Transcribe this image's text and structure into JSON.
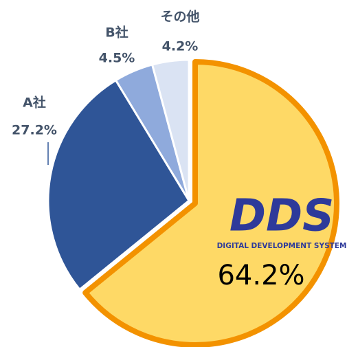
{
  "chart_data": {
    "type": "pie",
    "categories": [
      null,
      "A社",
      "B社",
      "その他"
    ],
    "values": [
      64.2,
      27.2,
      4.5,
      4.2
    ],
    "value_labels": [
      "64.2%",
      "27.2%",
      "4.5%",
      "4.2%"
    ],
    "colors": [
      "#fed966",
      "#2f5597",
      "#8faadc",
      "#dae3f3"
    ],
    "highlight_color": "#f39200",
    "logo": {
      "title": "DDS",
      "subtitle": "DIGITAL DEVELOPMENT SYSTEM"
    }
  }
}
